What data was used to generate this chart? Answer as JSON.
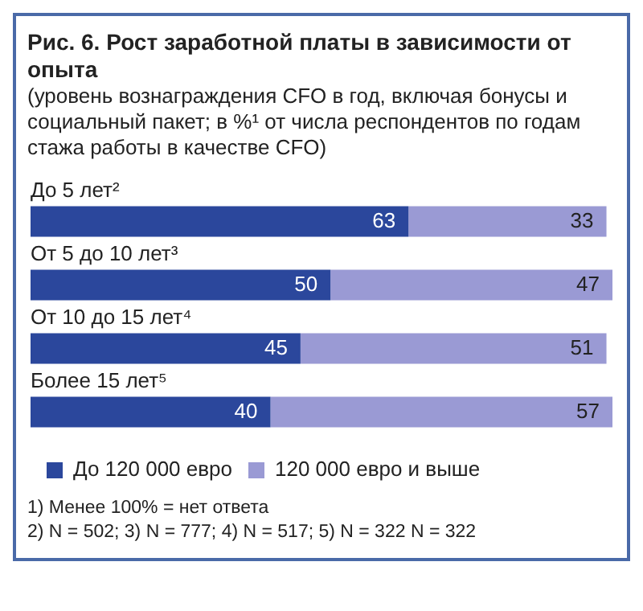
{
  "chart_data": {
    "type": "bar",
    "orientation": "horizontal",
    "stacked": true,
    "title": "Рис. 6. Рост заработной платы в зависимости от опыта",
    "subtitle": "(уровень вознаграждения CFO в год, включая бонусы и социальный пакет; в %¹ от числа респондентов по годам стажа работы в качестве CFO)",
    "categories": [
      "До 5 лет²",
      "От 5 до 10 лет³",
      "От 10 до 15 лет⁴",
      "Более 15 лет⁵"
    ],
    "series": [
      {
        "name": "До 120 000 евро",
        "color": "#2b479c",
        "values": [
          63,
          50,
          45,
          40
        ]
      },
      {
        "name": "120 000 евро и выше",
        "color": "#9a9ad4",
        "values": [
          33,
          47,
          51,
          57
        ]
      }
    ],
    "data_labels": true,
    "legend": "bottom",
    "tick_labels": false,
    "annotations": [
      "1) Менее 100% = нет ответа",
      "2) N = 502; 3) N = 777; 4) N = 517; 5) N = 322 N = 322"
    ]
  }
}
